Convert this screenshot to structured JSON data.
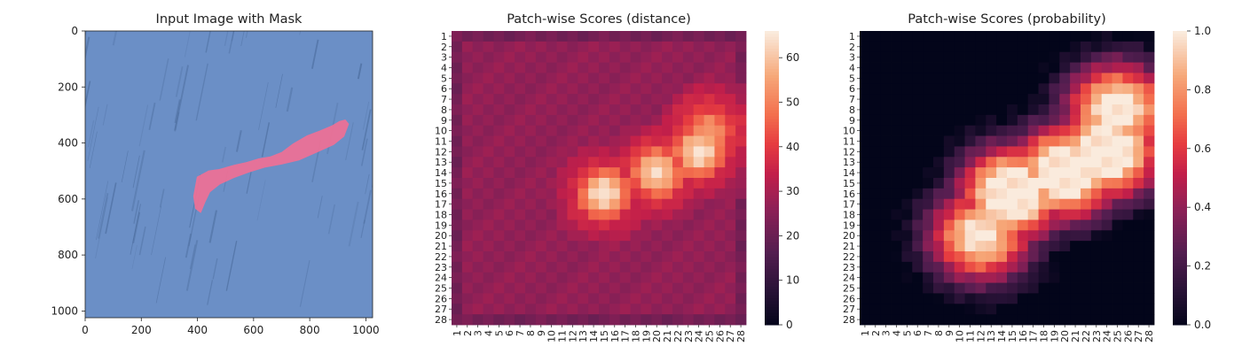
{
  "figure": {
    "background": "#ffffff"
  },
  "chart_data": [
    {
      "type": "image",
      "title": "Input Image with Mask",
      "xlabel": "",
      "ylabel": "",
      "xlim": [
        0,
        1024
      ],
      "ylim": [
        1024,
        0
      ],
      "xticks": [
        "0",
        "200",
        "400",
        "600",
        "800",
        "1000"
      ],
      "yticks": [
        "0",
        "200",
        "400",
        "600",
        "800",
        "1000"
      ],
      "image_description_colors": {
        "background": "#6b8fc6",
        "streaks": "#4d6e9f",
        "mask": "#f07095"
      },
      "mask_outline": [
        [
          398,
          521
        ],
        [
          440,
          498
        ],
        [
          478,
          493
        ],
        [
          530,
          478
        ],
        [
          575,
          468
        ],
        [
          618,
          455
        ],
        [
          660,
          448
        ],
        [
          700,
          432
        ],
        [
          740,
          402
        ],
        [
          790,
          373
        ],
        [
          835,
          356
        ],
        [
          880,
          337
        ],
        [
          905,
          322
        ],
        [
          927,
          316
        ],
        [
          940,
          332
        ],
        [
          923,
          377
        ],
        [
          886,
          407
        ],
        [
          830,
          432
        ],
        [
          762,
          462
        ],
        [
          700,
          477
        ],
        [
          640,
          488
        ],
        [
          585,
          505
        ],
        [
          530,
          525
        ],
        [
          480,
          548
        ],
        [
          445,
          576
        ],
        [
          428,
          612
        ],
        [
          412,
          650
        ],
        [
          392,
          635
        ],
        [
          385,
          590
        ]
      ],
      "grid": false
    },
    {
      "type": "heatmap",
      "title": "Patch-wise Scores (distance)",
      "xlabel": "",
      "ylabel": "",
      "xticks": [
        "1",
        "2",
        "3",
        "4",
        "5",
        "6",
        "7",
        "8",
        "9",
        "10",
        "11",
        "12",
        "13",
        "14",
        "15",
        "16",
        "17",
        "18",
        "19",
        "20",
        "21",
        "22",
        "23",
        "24",
        "25",
        "26",
        "27",
        "28"
      ],
      "yticks": [
        "1",
        "2",
        "3",
        "4",
        "5",
        "6",
        "7",
        "8",
        "9",
        "10",
        "11",
        "12",
        "13",
        "14",
        "15",
        "16",
        "17",
        "18",
        "19",
        "20",
        "21",
        "22",
        "23",
        "24",
        "25",
        "26",
        "27",
        "28"
      ],
      "grid_size": [
        28,
        28
      ],
      "colormap": "rocket",
      "vmin": 0,
      "vmax": 66,
      "colorbar_ticks": [
        "0",
        "10",
        "20",
        "30",
        "40",
        "50",
        "60"
      ],
      "values_note": "per-cell distance scores; blob centered around row 15-16, columns 13-25",
      "base_level": 27,
      "edge_level": 22,
      "blob": {
        "centers": [
          [
            16,
            15,
            65
          ],
          [
            12,
            24,
            65
          ],
          [
            14,
            20,
            64
          ],
          [
            10,
            25,
            55
          ]
        ],
        "spread": 2.6
      },
      "halo": {
        "peak": 43,
        "spread": 5.5
      }
    },
    {
      "type": "heatmap",
      "title": "Patch-wise Scores (probability)",
      "xlabel": "",
      "ylabel": "",
      "xticks": [
        "1",
        "2",
        "3",
        "4",
        "5",
        "6",
        "7",
        "8",
        "9",
        "10",
        "11",
        "12",
        "13",
        "14",
        "15",
        "16",
        "17",
        "18",
        "19",
        "20",
        "21",
        "22",
        "23",
        "24",
        "25",
        "26",
        "27",
        "28"
      ],
      "yticks": [
        "1",
        "2",
        "3",
        "4",
        "5",
        "6",
        "7",
        "8",
        "9",
        "10",
        "11",
        "12",
        "13",
        "14",
        "15",
        "16",
        "17",
        "18",
        "19",
        "20",
        "21",
        "22",
        "23",
        "24",
        "25",
        "26",
        "27",
        "28"
      ],
      "grid_size": [
        28,
        28
      ],
      "colormap": "rocket",
      "vmin": 0.0,
      "vmax": 1.0,
      "colorbar_ticks": [
        "0.0",
        "0.2",
        "0.4",
        "0.6",
        "0.8",
        "1.0"
      ],
      "values_note": "per-cell probability scores; high region rows 6-22, columns 9-28",
      "blob": {
        "centers": [
          [
            16,
            15,
            1.0
          ],
          [
            12,
            24,
            1.0
          ],
          [
            14,
            20,
            1.0
          ],
          [
            8,
            25,
            0.9
          ],
          [
            20,
            12,
            0.85
          ]
        ],
        "spread": 3.4
      }
    }
  ]
}
